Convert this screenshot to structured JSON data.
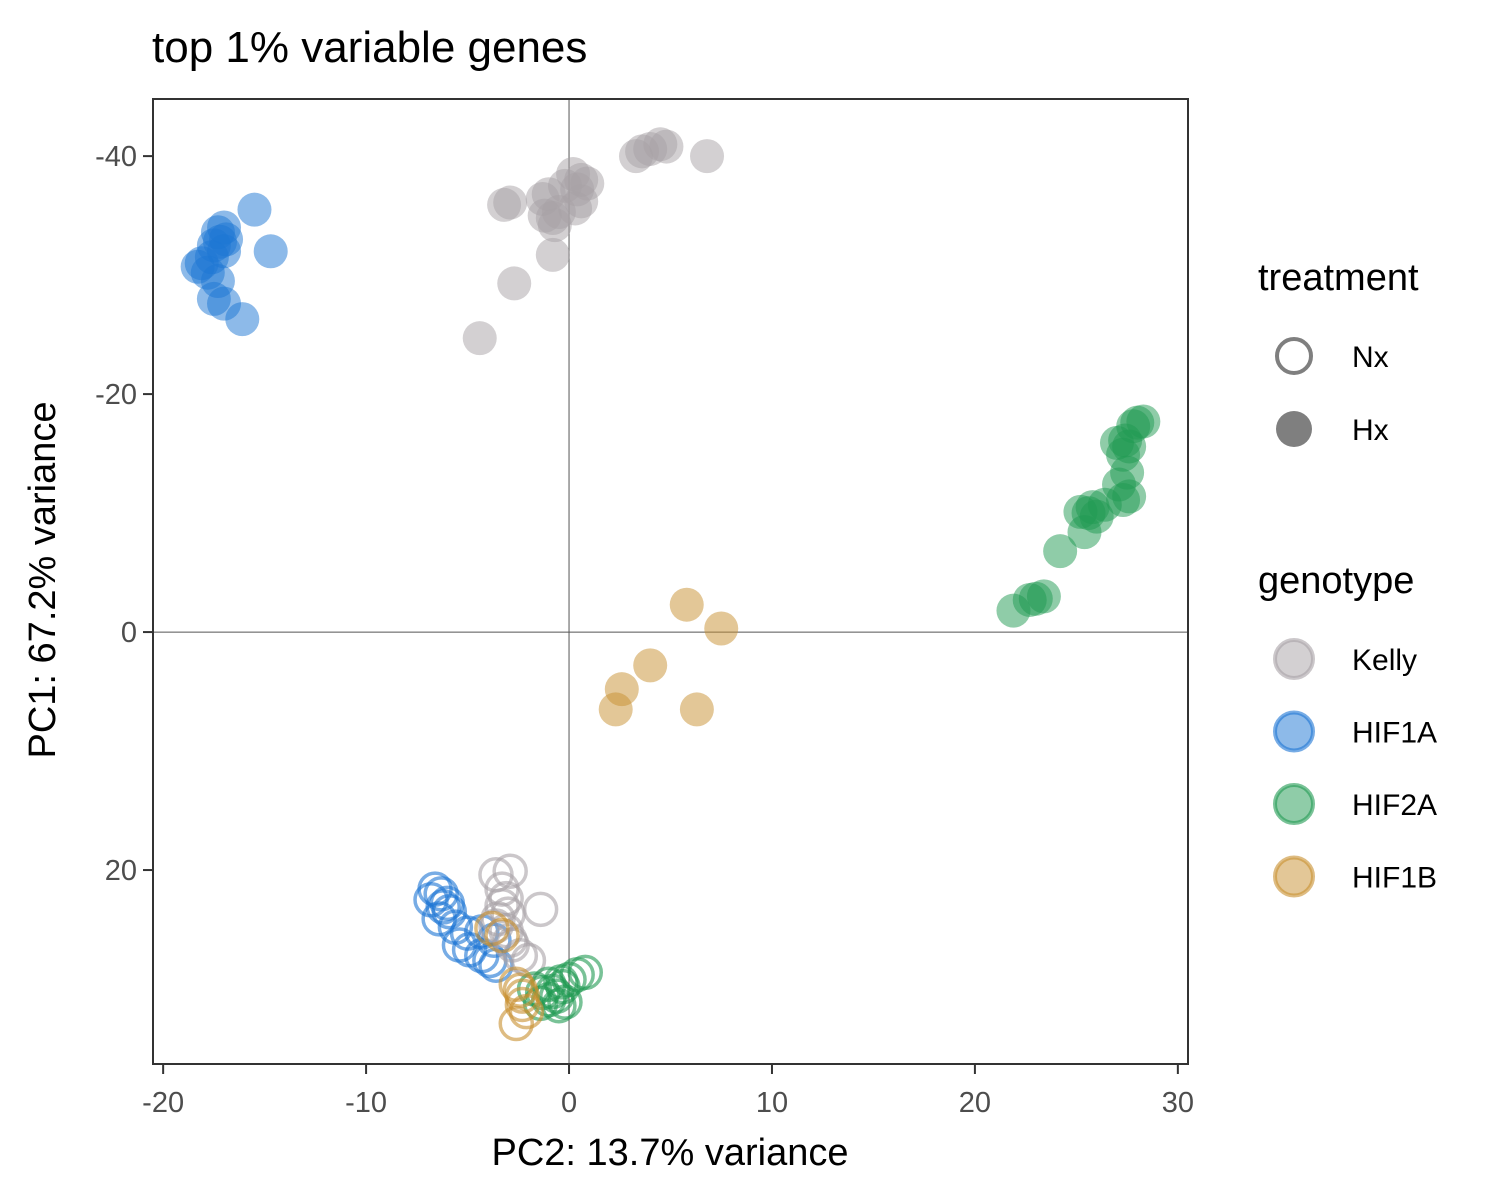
{
  "chart_data": {
    "type": "scatter",
    "title": "top 1% variable genes",
    "xlabel": "PC2: 13.7% variance",
    "ylabel": "PC1: 67.2% variance",
    "xlim": [
      -20.5,
      30.5
    ],
    "ylim": [
      -44.8,
      36.3
    ],
    "y_reversed": true,
    "x_ticks": [
      -20,
      -10,
      0,
      10,
      20,
      30
    ],
    "x_tick_labels": [
      "-20",
      "-10",
      "0",
      "10",
      "20",
      "30"
    ],
    "y_ticks": [
      -40,
      -20,
      0,
      20
    ],
    "y_tick_labels": [
      "-40",
      "-20",
      "0",
      "20"
    ],
    "reference_lines": {
      "x": 0,
      "y": 0
    },
    "grid": false,
    "legend_position": "right",
    "colors": {
      "Kelly": "#a8a2a6",
      "HIF1A": "#1c75d3",
      "HIF2A": "#1f9a52",
      "HIF1B": "#c8902f"
    },
    "legend": {
      "treatment": {
        "title": "treatment",
        "items": [
          {
            "label": "Nx",
            "shape": "open-circle"
          },
          {
            "label": "Hx",
            "shape": "filled-circle"
          }
        ]
      },
      "genotype": {
        "title": "genotype",
        "items": [
          "Kelly",
          "HIF1A",
          "HIF2A",
          "HIF1B"
        ]
      }
    },
    "series": [
      {
        "genotype": "Kelly",
        "treatment": "Hx",
        "points": [
          [
            3.3,
            -40.0
          ],
          [
            3.6,
            -40.4
          ],
          [
            4.0,
            -40.6
          ],
          [
            4.5,
            -41.0
          ],
          [
            4.8,
            -40.8
          ],
          [
            6.8,
            -40.0
          ],
          [
            0.2,
            -38.5
          ],
          [
            0.6,
            -38.0
          ],
          [
            0.9,
            -37.7
          ],
          [
            0.4,
            -37.2
          ],
          [
            -0.2,
            -37.5
          ],
          [
            0.6,
            -36.2
          ],
          [
            -1.0,
            -36.8
          ],
          [
            -1.3,
            -36.4
          ],
          [
            0.3,
            -35.6
          ],
          [
            -0.8,
            -34.8
          ],
          [
            -0.7,
            -34.2
          ],
          [
            -0.5,
            -35.3
          ],
          [
            -2.9,
            -36.1
          ],
          [
            -3.2,
            -35.9
          ],
          [
            -0.8,
            -31.7
          ],
          [
            -2.7,
            -29.3
          ],
          [
            -4.4,
            -24.7
          ],
          [
            -1.2,
            -35.0
          ]
        ]
      },
      {
        "genotype": "HIF1A",
        "treatment": "Hx",
        "points": [
          [
            -15.5,
            -35.5
          ],
          [
            -17.0,
            -34.0
          ],
          [
            -17.3,
            -33.6
          ],
          [
            -16.9,
            -33.0
          ],
          [
            -17.5,
            -32.5
          ],
          [
            -17.0,
            -32.0
          ],
          [
            -17.6,
            -31.5
          ],
          [
            -18.1,
            -31.0
          ],
          [
            -18.3,
            -30.7
          ],
          [
            -17.8,
            -30.2
          ],
          [
            -17.3,
            -29.5
          ],
          [
            -17.5,
            -28.0
          ],
          [
            -17.0,
            -27.6
          ],
          [
            -16.1,
            -26.3
          ],
          [
            -14.7,
            -32.0
          ],
          [
            -17.2,
            -32.8
          ]
        ]
      },
      {
        "genotype": "HIF2A",
        "treatment": "Hx",
        "points": [
          [
            28.3,
            -17.7
          ],
          [
            28.0,
            -17.6
          ],
          [
            27.8,
            -17.3
          ],
          [
            27.4,
            -16.1
          ],
          [
            27.0,
            -15.9
          ],
          [
            27.6,
            -15.6
          ],
          [
            27.3,
            -14.9
          ],
          [
            27.5,
            -13.4
          ],
          [
            27.1,
            -12.4
          ],
          [
            27.6,
            -11.4
          ],
          [
            27.3,
            -11.1
          ],
          [
            26.4,
            -10.7
          ],
          [
            25.8,
            -10.5
          ],
          [
            25.6,
            -10.0
          ],
          [
            26.0,
            -9.7
          ],
          [
            25.2,
            -10.1
          ],
          [
            25.4,
            -8.4
          ],
          [
            24.2,
            -6.8
          ],
          [
            23.4,
            -3.0
          ],
          [
            23.0,
            -2.8
          ],
          [
            22.7,
            -2.7
          ],
          [
            21.9,
            -1.8
          ]
        ]
      },
      {
        "genotype": "HIF1B",
        "treatment": "Hx",
        "points": [
          [
            5.8,
            -2.3
          ],
          [
            7.5,
            -0.3
          ],
          [
            4.0,
            2.8
          ],
          [
            2.6,
            4.8
          ],
          [
            2.3,
            6.5
          ],
          [
            6.3,
            6.5
          ]
        ]
      },
      {
        "genotype": "HIF1A",
        "treatment": "Nx",
        "points": [
          [
            -6.6,
            21.6
          ],
          [
            -6.3,
            22.0
          ],
          [
            -6.8,
            22.5
          ],
          [
            -6.2,
            23.1
          ],
          [
            -5.9,
            23.5
          ],
          [
            -6.4,
            24.1
          ],
          [
            -5.6,
            24.8
          ],
          [
            -5.0,
            25.3
          ],
          [
            -4.3,
            25.2
          ],
          [
            -3.7,
            25.9
          ],
          [
            -5.4,
            26.3
          ],
          [
            -4.9,
            26.7
          ],
          [
            -4.3,
            27.2
          ],
          [
            -3.9,
            27.6
          ],
          [
            -3.6,
            28.0
          ],
          [
            -6.0,
            22.8
          ]
        ]
      },
      {
        "genotype": "Kelly",
        "treatment": "Nx",
        "points": [
          [
            -3.6,
            20.4
          ],
          [
            -2.9,
            20.1
          ],
          [
            -3.3,
            21.6
          ],
          [
            -3.1,
            22.4
          ],
          [
            -1.4,
            23.3
          ],
          [
            -3.0,
            23.7
          ],
          [
            -3.5,
            24.1
          ],
          [
            -3.6,
            24.7
          ],
          [
            -3.1,
            25.1
          ],
          [
            -2.9,
            25.9
          ],
          [
            -2.8,
            26.3
          ],
          [
            -2.4,
            27.2
          ],
          [
            -2.0,
            27.6
          ],
          [
            -3.3,
            23.0
          ]
        ]
      },
      {
        "genotype": "HIF2A",
        "treatment": "Nx",
        "points": [
          [
            0.8,
            28.6
          ],
          [
            0.4,
            28.8
          ],
          [
            0.0,
            29.2
          ],
          [
            -0.4,
            29.4
          ],
          [
            -1.0,
            29.6
          ],
          [
            -0.3,
            29.8
          ],
          [
            -1.7,
            30.0
          ],
          [
            -1.3,
            30.3
          ],
          [
            -0.6,
            30.6
          ],
          [
            -1.0,
            30.9
          ],
          [
            -0.2,
            31.1
          ],
          [
            -0.5,
            31.4
          ],
          [
            -1.4,
            31.2
          ],
          [
            -0.8,
            30.2
          ]
        ]
      },
      {
        "genotype": "HIF1B",
        "treatment": "Nx",
        "points": [
          [
            -3.8,
            24.9
          ],
          [
            -3.3,
            25.5
          ],
          [
            -2.6,
            29.6
          ],
          [
            -2.3,
            30.6
          ],
          [
            -2.3,
            31.3
          ],
          [
            -2.1,
            31.9
          ],
          [
            -2.6,
            32.9
          ],
          [
            -2.4,
            30.1
          ]
        ]
      }
    ]
  }
}
